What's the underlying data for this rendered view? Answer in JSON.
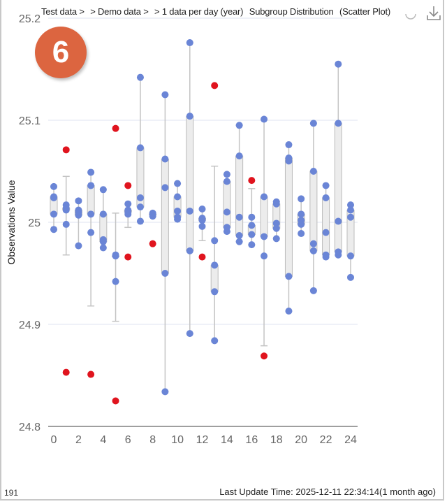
{
  "header": {
    "breadcrumb": [
      "Test data >",
      "> Demo data >",
      "> 1 data per day (year)",
      "Subgroup Distribution",
      "(Scatter Plot)"
    ],
    "icons": [
      "settings-icon",
      "download-icon"
    ]
  },
  "badge": {
    "number": "6",
    "color": "#dc6540"
  },
  "footer": {
    "left_count": "191",
    "last_update": "Last Update Time: 2025-12-11 22:34:14(1 month ago)"
  },
  "chart_data": {
    "type": "scatter",
    "title": "Subgroup Distribution (Scatter Plot)",
    "xlabel": "",
    "ylabel": "Observations Value",
    "xlim": [
      0,
      24
    ],
    "ylim": [
      24.8,
      25.2
    ],
    "xticks": [
      "0",
      "2",
      "4",
      "6",
      "8",
      "10",
      "12",
      "14",
      "16",
      "18",
      "20",
      "22",
      "24"
    ],
    "yticks": [
      "24.8",
      "24.9",
      "25",
      "25.1",
      "25.2"
    ],
    "grid": true,
    "colors": {
      "point": "#6a85d6",
      "outlier": "#e0141e",
      "box": "#ececec",
      "whisker": "#c4c4c4",
      "grid": "#dfe3f0"
    },
    "groups": [
      {
        "x": 0,
        "points": [
          25.035,
          25.025,
          25.024,
          25.008,
          24.993
        ],
        "outliers": []
      },
      {
        "x": 1,
        "points": [
          25.017,
          25.014,
          25.012,
          24.998
        ],
        "outliers": [
          25.071,
          24.853
        ],
        "whisker": [
          24.968,
          25.045
        ]
      },
      {
        "x": 2,
        "points": [
          25.021,
          25.012,
          25.01,
          25.007,
          24.977
        ],
        "outliers": []
      },
      {
        "x": 3,
        "points": [
          25.049,
          25.036,
          25.008,
          24.99
        ],
        "outliers": [
          24.851
        ],
        "whisker": [
          24.918,
          25.049
        ]
      },
      {
        "x": 4,
        "points": [
          25.032,
          25.008,
          24.983,
          24.981,
          24.975
        ],
        "outliers": []
      },
      {
        "x": 5,
        "points": [
          24.968,
          24.967,
          24.942
        ],
        "outliers": [
          25.092,
          24.825
        ],
        "whisker": [
          24.903,
          25.009
        ]
      },
      {
        "x": 6,
        "points": [
          25.018,
          25.012,
          25.01,
          25.008
        ],
        "outliers": [
          25.036,
          24.966
        ],
        "whisker": [
          24.995,
          25.018
        ]
      },
      {
        "x": 7,
        "points": [
          25.142,
          25.073,
          25.024,
          25.015,
          25.001
        ],
        "outliers": []
      },
      {
        "x": 8,
        "points": [
          25.009,
          25.008,
          25.006
        ],
        "outliers": [
          24.979
        ]
      },
      {
        "x": 9,
        "points": [
          25.125,
          25.062,
          25.034,
          24.95,
          24.834
        ],
        "outliers": []
      },
      {
        "x": 10,
        "points": [
          25.038,
          25.025,
          25.011,
          25.005,
          25.003
        ],
        "outliers": []
      },
      {
        "x": 11,
        "points": [
          25.176,
          25.104,
          25.011,
          24.972,
          24.891
        ],
        "outliers": []
      },
      {
        "x": 12,
        "points": [
          25.013,
          25.004,
          25.002,
          24.996
        ],
        "outliers": [
          24.966
        ],
        "whisker": [
          24.982,
          25.013
        ]
      },
      {
        "x": 13,
        "points": [
          24.982,
          24.958,
          24.932,
          24.884
        ],
        "outliers": [
          25.134
        ],
        "whisker": [
          24.884,
          25.055
        ]
      },
      {
        "x": 14,
        "points": [
          25.047,
          25.04,
          25.01,
          24.995,
          24.991
        ],
        "outliers": []
      },
      {
        "x": 15,
        "points": [
          25.095,
          25.065,
          25.005,
          24.987,
          24.981
        ],
        "outliers": []
      },
      {
        "x": 16,
        "points": [
          25.005,
          24.997,
          24.988,
          24.978
        ],
        "outliers": [
          25.041
        ],
        "whisker": [
          24.978,
          25.033
        ]
      },
      {
        "x": 17,
        "points": [
          25.101,
          25.025,
          24.986,
          24.967
        ],
        "outliers": [
          24.869
        ],
        "whisker": [
          24.879,
          25.101
        ]
      },
      {
        "x": 18,
        "points": [
          25.02,
          25.018,
          24.999,
          24.994,
          24.984
        ],
        "outliers": []
      },
      {
        "x": 19,
        "points": [
          25.076,
          25.063,
          25.06,
          24.947,
          24.913
        ],
        "outliers": []
      },
      {
        "x": 20,
        "points": [
          25.023,
          25.008,
          25.002,
          24.998,
          24.989
        ],
        "outliers": []
      },
      {
        "x": 21,
        "points": [
          25.097,
          25.05,
          24.979,
          24.972,
          24.933
        ],
        "outliers": []
      },
      {
        "x": 22,
        "points": [
          25.036,
          25.024,
          24.99,
          24.968,
          24.966
        ],
        "outliers": []
      },
      {
        "x": 23,
        "points": [
          25.155,
          25.097,
          25.001,
          24.971,
          24.968
        ],
        "outliers": []
      },
      {
        "x": 24,
        "points": [
          25.017,
          25.012,
          25.005,
          24.967,
          24.946
        ],
        "outliers": []
      }
    ]
  }
}
